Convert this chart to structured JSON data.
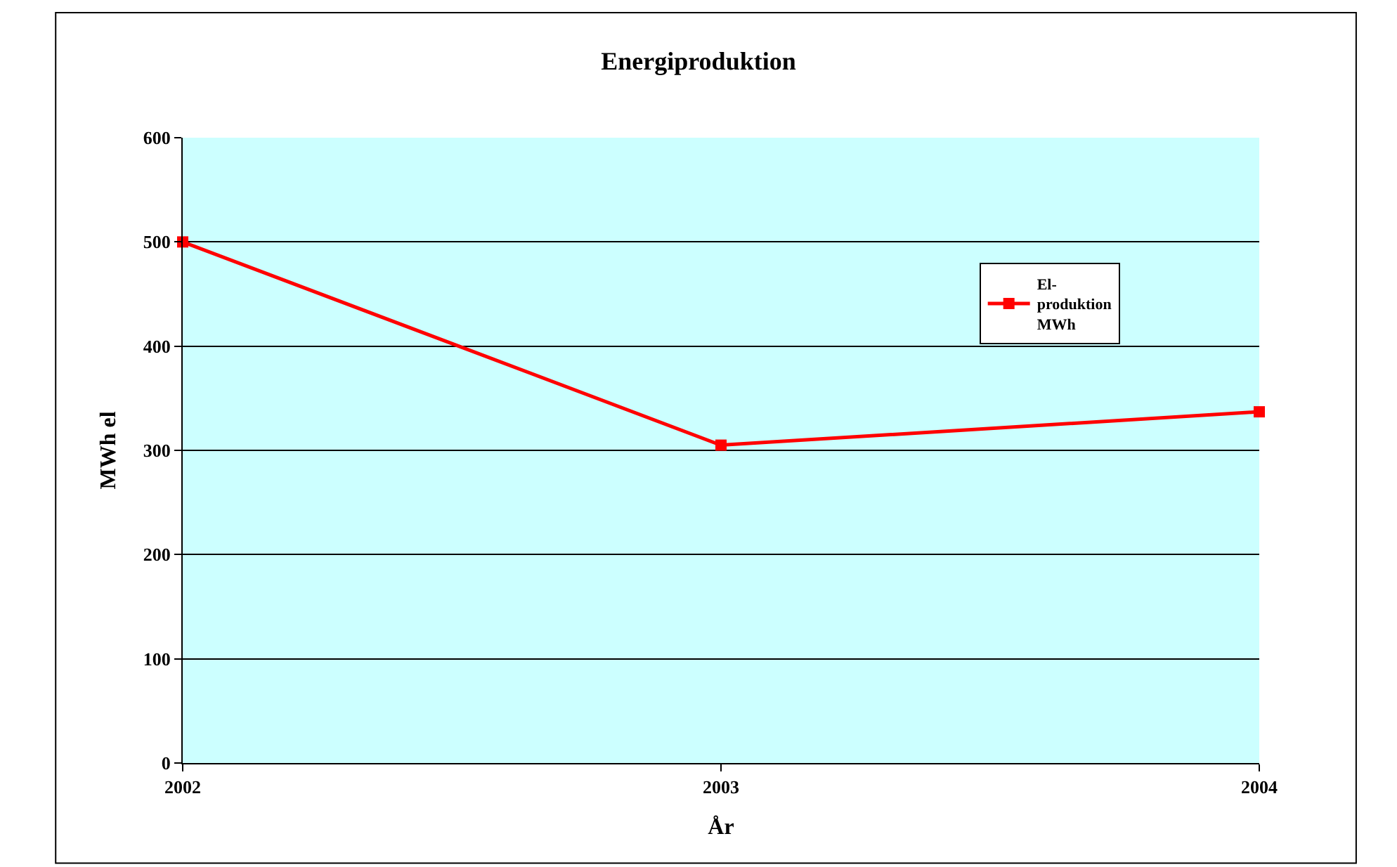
{
  "chart_data": {
    "type": "line",
    "title": "Energiproduktion",
    "xlabel": "År",
    "ylabel": "MWh el",
    "categories": [
      "2002",
      "2003",
      "2004"
    ],
    "series": [
      {
        "name": "El-produktion MWh",
        "color": "#ff0000",
        "values": [
          500,
          305,
          337
        ]
      }
    ],
    "ylim": [
      0,
      600
    ],
    "yticks": [
      0,
      100,
      200,
      300,
      400,
      500,
      600
    ],
    "grid": "y",
    "legend": "top right",
    "marker": "square",
    "line_style": "solid"
  }
}
